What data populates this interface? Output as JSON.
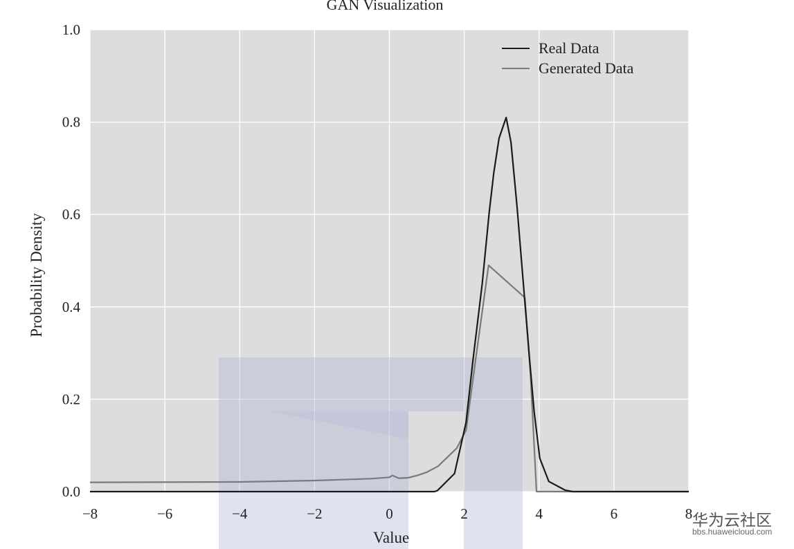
{
  "chart_data": {
    "type": "line",
    "title": "GAN Visualization",
    "xlabel": "Value",
    "ylabel": "Probability Density",
    "xlim": [
      -8,
      8
    ],
    "ylim": [
      0,
      1.0
    ],
    "xticks": [
      "−8",
      "−6",
      "−4",
      "−2",
      "0",
      "2",
      "4",
      "6",
      "8"
    ],
    "xtick_values": [
      -8,
      -6,
      -4,
      -2,
      0,
      2,
      4,
      6,
      8
    ],
    "yticks": [
      "0.0",
      "0.2",
      "0.4",
      "0.6",
      "0.8",
      "1.0"
    ],
    "ytick_values": [
      0,
      0.2,
      0.4,
      0.6,
      0.8,
      1.0
    ],
    "grid": true,
    "legend_position": "top-right",
    "background": "#dddddd",
    "series": [
      {
        "name": "Real Data",
        "color": "#1a1a1a",
        "x": [
          -8,
          1.2,
          1.28,
          1.74,
          2.05,
          2.23,
          2.48,
          2.67,
          2.79,
          2.93,
          3.12,
          3.25,
          3.41,
          3.59,
          3.75,
          3.87,
          4.02,
          4.26,
          4.7,
          4.9,
          8
        ],
        "y": [
          0,
          0,
          0.002,
          0.039,
          0.15,
          0.283,
          0.45,
          0.606,
          0.69,
          0.765,
          0.81,
          0.756,
          0.617,
          0.44,
          0.283,
          0.172,
          0.072,
          0.022,
          0.003,
          0,
          0
        ]
      },
      {
        "name": "Generated Data",
        "color": "#7a7a7a",
        "x": [
          -8,
          -4,
          -2,
          -0.5,
          0,
          0.08,
          0.25,
          0.5,
          0.75,
          1.0,
          1.3,
          1.8,
          2.05,
          2.3,
          2.65,
          3.62,
          3.77,
          3.93,
          8
        ],
        "y": [
          0.02,
          0.021,
          0.024,
          0.028,
          0.031,
          0.035,
          0.029,
          0.03,
          0.035,
          0.042,
          0.055,
          0.094,
          0.133,
          0.283,
          0.49,
          0.42,
          0.256,
          0,
          0
        ]
      }
    ]
  },
  "watermark": {
    "brand": "华为云社区",
    "url": "bbs.huaweicloud.com"
  }
}
